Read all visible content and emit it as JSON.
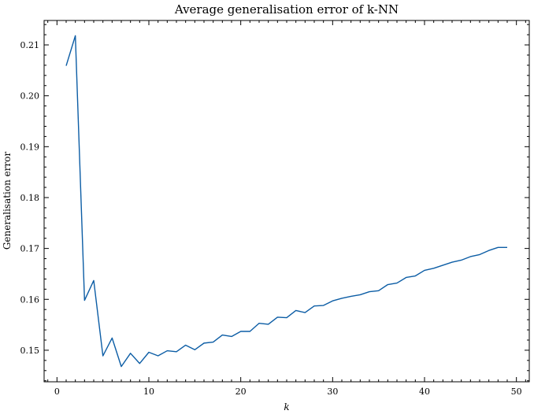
{
  "chart_data": {
    "type": "line",
    "title": "Average generalisation error of k-NN",
    "xlabel": "k",
    "ylabel": "Generalisation error",
    "xlim": [
      -1.4,
      51.4
    ],
    "ylim": [
      0.1438,
      0.2148
    ],
    "grid": false,
    "colors": {
      "line": "#0c5da5"
    },
    "xticks": [
      0,
      10,
      20,
      30,
      40,
      50
    ],
    "xtick_labels": [
      "0",
      "10",
      "20",
      "30",
      "40",
      "50"
    ],
    "yticks": [
      0.15,
      0.16,
      0.17,
      0.18,
      0.19,
      0.2,
      0.21
    ],
    "ytick_labels": [
      "0.15",
      "0.16",
      "0.17",
      "0.18",
      "0.19",
      "0.20",
      "0.21"
    ],
    "x": [
      1,
      2,
      3,
      4,
      5,
      6,
      7,
      8,
      9,
      10,
      11,
      12,
      13,
      14,
      15,
      16,
      17,
      18,
      19,
      20,
      21,
      22,
      23,
      24,
      25,
      26,
      27,
      28,
      29,
      30,
      31,
      32,
      33,
      34,
      35,
      36,
      37,
      38,
      39,
      40,
      41,
      42,
      43,
      44,
      45,
      46,
      47,
      48,
      49
    ],
    "series": [
      {
        "values": [
          0.2059,
          0.2118,
          0.1598,
          0.1637,
          0.1489,
          0.1524,
          0.1468,
          0.1494,
          0.1474,
          0.1496,
          0.1489,
          0.1499,
          0.1497,
          0.151,
          0.1501,
          0.1514,
          0.1516,
          0.153,
          0.1527,
          0.1537,
          0.1537,
          0.1553,
          0.1551,
          0.1565,
          0.1564,
          0.1578,
          0.1574,
          0.1587,
          0.1588,
          0.1597,
          0.1602,
          0.1606,
          0.1609,
          0.1615,
          0.1617,
          0.1629,
          0.1632,
          0.1643,
          0.1646,
          0.1657,
          0.1661,
          0.1667,
          0.1673,
          0.1677,
          0.1684,
          0.1688,
          0.1696,
          0.1702,
          0.1702
        ]
      }
    ]
  }
}
